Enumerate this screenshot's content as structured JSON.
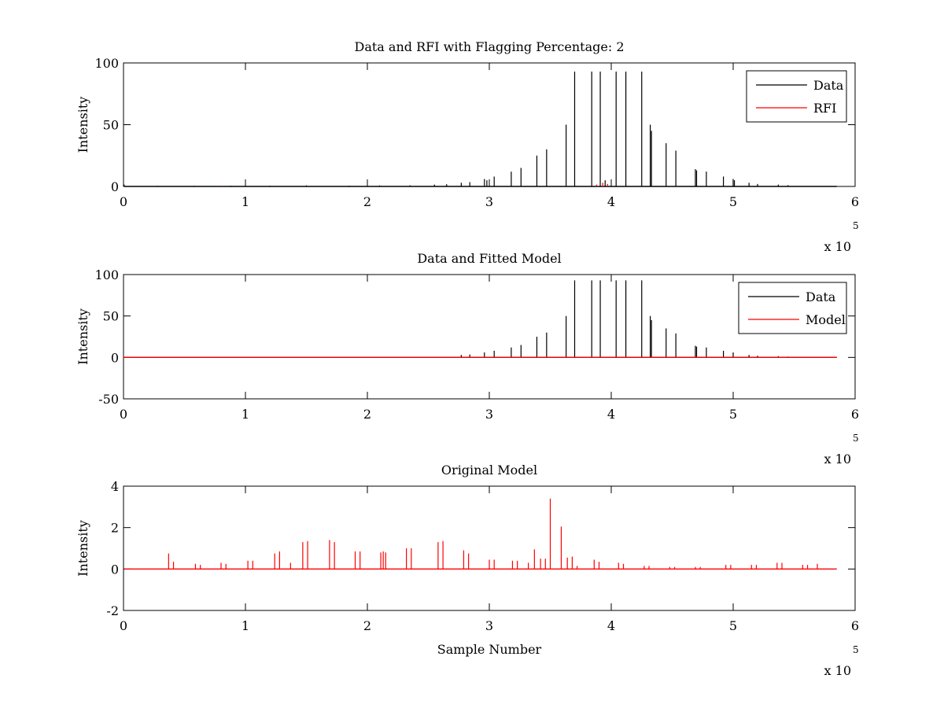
{
  "chart_data": [
    {
      "type": "line",
      "title": "Data and RFI with Flagging Percentage: 2",
      "xlabel": "",
      "ylabel": "Intensity",
      "xlim": [
        0,
        6
      ],
      "ylim": [
        0,
        100
      ],
      "xticks": [
        "0",
        "1",
        "2",
        "3",
        "4",
        "5",
        "6"
      ],
      "yticks": [
        "0",
        "50",
        "100"
      ],
      "x_multiplier": {
        "base": "x 10",
        "exponent": "5"
      },
      "legend": {
        "position": "top-right",
        "entries": [
          "Data",
          "RFI"
        ]
      },
      "grid": false,
      "series": [
        {
          "name": "Data",
          "color": "#000000",
          "x": [
            0.005,
            0.28,
            0.58,
            0.88,
            1.2,
            1.5,
            1.85,
            2.1,
            2.35,
            2.55,
            2.65,
            2.77,
            2.84,
            2.96,
            2.98,
            3.04,
            3.18,
            3.26,
            3.39,
            3.47,
            3.63,
            3.7,
            3.84,
            3.91,
            3.95,
            4.04,
            4.12,
            4.25,
            4.32,
            4.33,
            4.45,
            4.53,
            4.69,
            4.7,
            4.78,
            4.92,
            5.0,
            5.01,
            5.13,
            5.2,
            5.37,
            5.45
          ],
          "y": [
            1.5,
            0.5,
            0.5,
            0.6,
            0.6,
            0.8,
            0.6,
            0.8,
            0.9,
            1.5,
            1.8,
            3,
            3.5,
            6,
            5,
            8,
            12,
            15,
            25,
            30,
            50,
            93,
            93,
            93,
            5,
            93,
            93,
            93,
            50,
            45,
            35,
            29,
            14,
            13,
            12,
            8,
            6,
            5,
            3,
            2,
            1.5,
            1
          ]
        },
        {
          "name": "RFI",
          "color": "#ff0000",
          "x": [
            0.82,
            3.88,
            3.93,
            3.97
          ],
          "y": [
            0.6,
            1.5,
            3,
            2
          ]
        }
      ]
    },
    {
      "type": "line",
      "title": "Data and Fitted Model",
      "xlabel": "",
      "ylabel": "Intensity",
      "xlim": [
        0,
        6
      ],
      "ylim": [
        -50,
        100
      ],
      "xticks": [
        "0",
        "1",
        "2",
        "3",
        "4",
        "5",
        "6"
      ],
      "yticks": [
        "-50",
        "0",
        "50",
        "100"
      ],
      "x_multiplier": {
        "base": "x 10",
        "exponent": "5"
      },
      "legend": {
        "position": "top-right",
        "entries": [
          "Data",
          "Model"
        ]
      },
      "grid": false,
      "series": [
        {
          "name": "Data",
          "color": "#000000",
          "x": [
            2.77,
            2.84,
            2.96,
            3.04,
            3.18,
            3.26,
            3.39,
            3.47,
            3.63,
            3.7,
            3.84,
            3.91,
            4.04,
            4.12,
            4.25,
            4.32,
            4.33,
            4.45,
            4.53,
            4.69,
            4.7,
            4.78,
            4.92,
            5.0,
            5.13,
            5.2,
            5.37,
            5.45
          ],
          "y": [
            3,
            3.5,
            6,
            8,
            12,
            15,
            25,
            30,
            50,
            93,
            93,
            93,
            93,
            93,
            93,
            50,
            45,
            35,
            29,
            14,
            13,
            12,
            8,
            6,
            3,
            2,
            1.5,
            1
          ]
        },
        {
          "name": "Model",
          "color": "#ff0000",
          "x": [
            0,
            5.85
          ],
          "y": [
            0,
            0
          ]
        }
      ]
    },
    {
      "type": "line",
      "title": "Original Model",
      "xlabel": "Sample Number",
      "ylabel": "Intensity",
      "xlim": [
        0,
        6
      ],
      "ylim": [
        -2,
        4
      ],
      "xticks": [
        "0",
        "1",
        "2",
        "3",
        "4",
        "5",
        "6"
      ],
      "yticks": [
        "-2",
        "0",
        "2",
        "4"
      ],
      "x_multiplier": {
        "base": "x 10",
        "exponent": "5"
      },
      "grid": false,
      "series": [
        {
          "color": "#ff0000",
          "x": [
            0.37,
            0.41,
            0.59,
            0.63,
            0.8,
            0.84,
            1.02,
            1.06,
            1.24,
            1.28,
            1.37,
            1.47,
            1.51,
            1.69,
            1.73,
            1.9,
            1.94,
            2.11,
            2.13,
            2.15,
            2.32,
            2.36,
            2.58,
            2.62,
            2.79,
            2.83,
            3.0,
            3.04,
            3.19,
            3.23,
            3.32,
            3.37,
            3.42,
            3.46,
            3.5,
            3.59,
            3.64,
            3.68,
            3.72,
            3.86,
            3.9,
            4.06,
            4.1,
            4.27,
            4.31,
            4.48,
            4.52,
            4.69,
            4.73,
            4.94,
            4.98,
            5.15,
            5.19,
            5.36,
            5.4,
            5.57,
            5.61,
            5.69
          ],
          "y": [
            0.75,
            0.35,
            0.25,
            0.2,
            0.3,
            0.25,
            0.4,
            0.4,
            0.75,
            0.85,
            0.3,
            1.3,
            1.35,
            1.4,
            1.3,
            0.85,
            0.85,
            0.8,
            0.85,
            0.8,
            1.0,
            1.0,
            1.3,
            1.35,
            0.9,
            0.75,
            0.45,
            0.45,
            0.4,
            0.4,
            0.3,
            0.95,
            0.5,
            0.5,
            3.4,
            2.05,
            0.55,
            0.6,
            0.15,
            0.45,
            0.35,
            0.3,
            0.25,
            0.15,
            0.15,
            0.1,
            0.1,
            0.1,
            0.1,
            0.2,
            0.2,
            0.2,
            0.2,
            0.3,
            0.3,
            0.2,
            0.2,
            0.25
          ]
        }
      ]
    }
  ]
}
